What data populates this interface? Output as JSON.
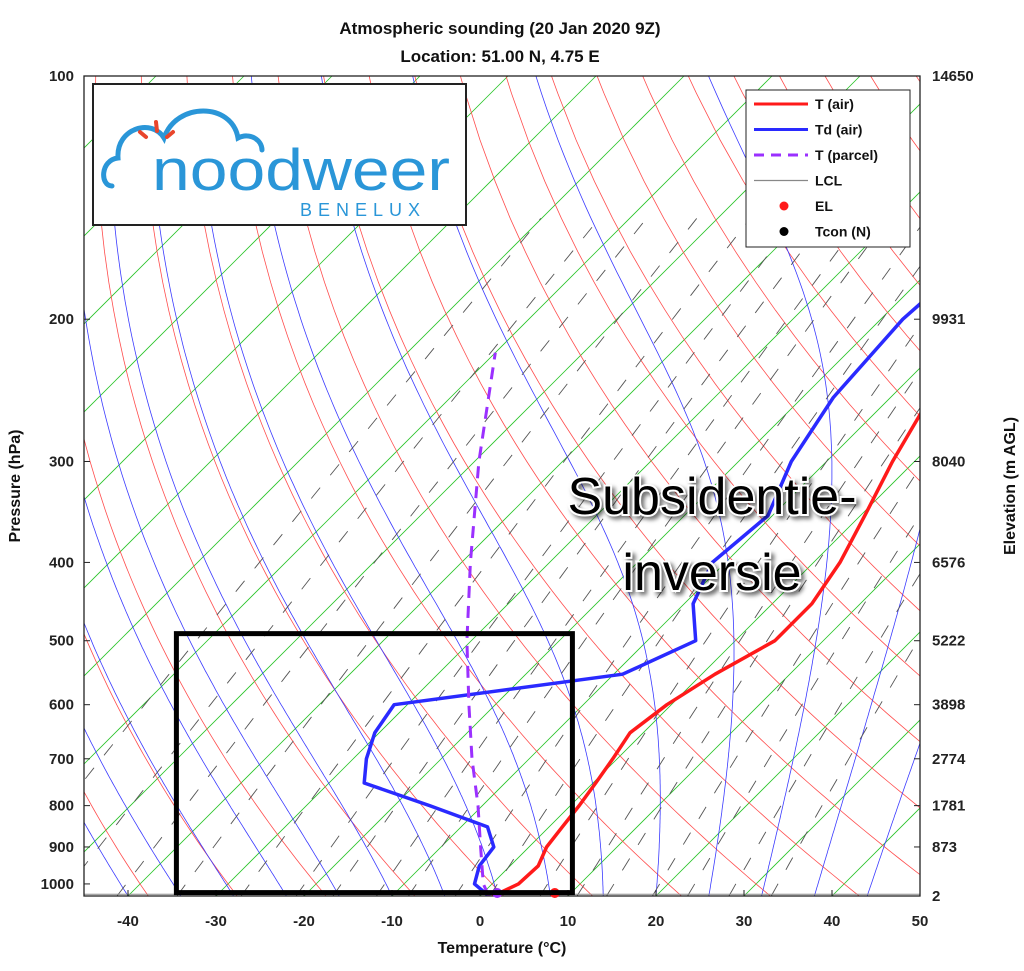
{
  "chart_data": {
    "type": "line",
    "title": "Atmospheric sounding (20 Jan 2020 9Z)",
    "subtitle": "Location: 51.00 N, 4.75 E",
    "xlabel": "Temperature (°C)",
    "ylabel": "Pressure (hPa)",
    "y2label": "Elevation (m AGL)",
    "xlim": [
      -45,
      50
    ],
    "ylim": [
      1035,
      100
    ],
    "y_scale": "log",
    "grid": false,
    "legend_position": "top-right",
    "x_ticks": [
      -40,
      -30,
      -20,
      -10,
      0,
      10,
      20,
      30,
      40,
      50
    ],
    "y_ticks": [
      100,
      200,
      300,
      400,
      500,
      600,
      700,
      800,
      900,
      1000
    ],
    "elevation_ticks": [
      {
        "p": 100,
        "label": "14650"
      },
      {
        "p": 200,
        "label": "9931"
      },
      {
        "p": 300,
        "label": "8040"
      },
      {
        "p": 400,
        "label": "6576"
      },
      {
        "p": 500,
        "label": "5222"
      },
      {
        "p": 600,
        "label": "3898"
      },
      {
        "p": 700,
        "label": "2774"
      },
      {
        "p": 800,
        "label": "1781"
      },
      {
        "p": 900,
        "label": "873"
      },
      {
        "p": 1035,
        "label": "2"
      }
    ],
    "series": [
      {
        "name": "T (air)",
        "color": "#ff1a1a",
        "style": "solid",
        "points": [
          [
            1035,
            1.5
          ],
          [
            1000,
            3.0
          ],
          [
            950,
            3.2
          ],
          [
            900,
            2.0
          ],
          [
            850,
            1.5
          ],
          [
            800,
            1.0
          ],
          [
            750,
            0.3
          ],
          [
            700,
            -0.5
          ],
          [
            650,
            -1.5
          ],
          [
            600,
            -0.5
          ],
          [
            550,
            1.5
          ],
          [
            500,
            4.5
          ],
          [
            450,
            4.5
          ],
          [
            400,
            3.0
          ],
          [
            350,
            0.5
          ],
          [
            300,
            -2.5
          ],
          [
            250,
            -5.5
          ],
          [
            200,
            -8.0
          ],
          [
            175,
            -7.0
          ],
          [
            150,
            -2.0
          ],
          [
            125,
            7.0
          ],
          [
            100,
            15.5
          ]
        ]
      },
      {
        "name": "Td (air)",
        "color": "#2a2aff",
        "style": "solid",
        "points": [
          [
            1035,
            1.0
          ],
          [
            1000,
            -2.0
          ],
          [
            950,
            -3.5
          ],
          [
            900,
            -4.0
          ],
          [
            850,
            -7.0
          ],
          [
            800,
            -16.0
          ],
          [
            750,
            -26.0
          ],
          [
            700,
            -28.5
          ],
          [
            650,
            -30.5
          ],
          [
            600,
            -31.5
          ],
          [
            550,
            -9.0
          ],
          [
            500,
            -4.5
          ],
          [
            450,
            -9.0
          ],
          [
            400,
            -11.5
          ],
          [
            350,
            -10.5
          ],
          [
            300,
            -14.0
          ],
          [
            250,
            -16.5
          ],
          [
            200,
            -17.5
          ],
          [
            150,
            -16.0
          ],
          [
            125,
            -13.0
          ],
          [
            100,
            -5.0
          ]
        ]
      },
      {
        "name": "T (parcel)",
        "color": "#9b30ff",
        "style": "dashed",
        "points": [
          [
            1035,
            1.0
          ],
          [
            1000,
            -1.0
          ],
          [
            900,
            -5.5
          ],
          [
            800,
            -10.5
          ],
          [
            700,
            -16.5
          ],
          [
            600,
            -23.0
          ],
          [
            500,
            -30.5
          ],
          [
            400,
            -39.0
          ],
          [
            300,
            -49.5
          ],
          [
            220,
            -60.0
          ]
        ]
      }
    ],
    "legend": [
      {
        "label": "T (air)",
        "kind": "line",
        "color": "#ff1a1a"
      },
      {
        "label": "Td (air)",
        "kind": "line",
        "color": "#2a2aff"
      },
      {
        "label": "T (parcel)",
        "kind": "dashed",
        "color": "#9b30ff"
      },
      {
        "label": "LCL",
        "kind": "thin",
        "color": "#888888"
      },
      {
        "label": "EL",
        "kind": "dot",
        "color": "#ff1a1a"
      },
      {
        "label": "Tcon (N)",
        "kind": "dot",
        "color": "#000000"
      }
    ],
    "markers": {
      "lcl_pressure": 1030,
      "el": {
        "p": 1035,
        "t": 8.5
      },
      "tcon": {
        "p": 1035,
        "t": 1.5
      }
    },
    "annotation": {
      "line1": "Subsidentie-",
      "line2": "inversie"
    },
    "highlight_box": {
      "x_from": -34.5,
      "x_to": 10.5,
      "p_top": 490,
      "p_bottom": 1025
    },
    "colors": {
      "isotherm": "#27c427",
      "dry_adiabat": "#ff4d4d",
      "moist_adiabat": "#3b3bff",
      "mixing_ratio": "#555555"
    }
  },
  "logo": {
    "word": "noodweer",
    "sub": "BENELUX",
    "color": "#2a96d8",
    "accent": "#e8452c"
  }
}
